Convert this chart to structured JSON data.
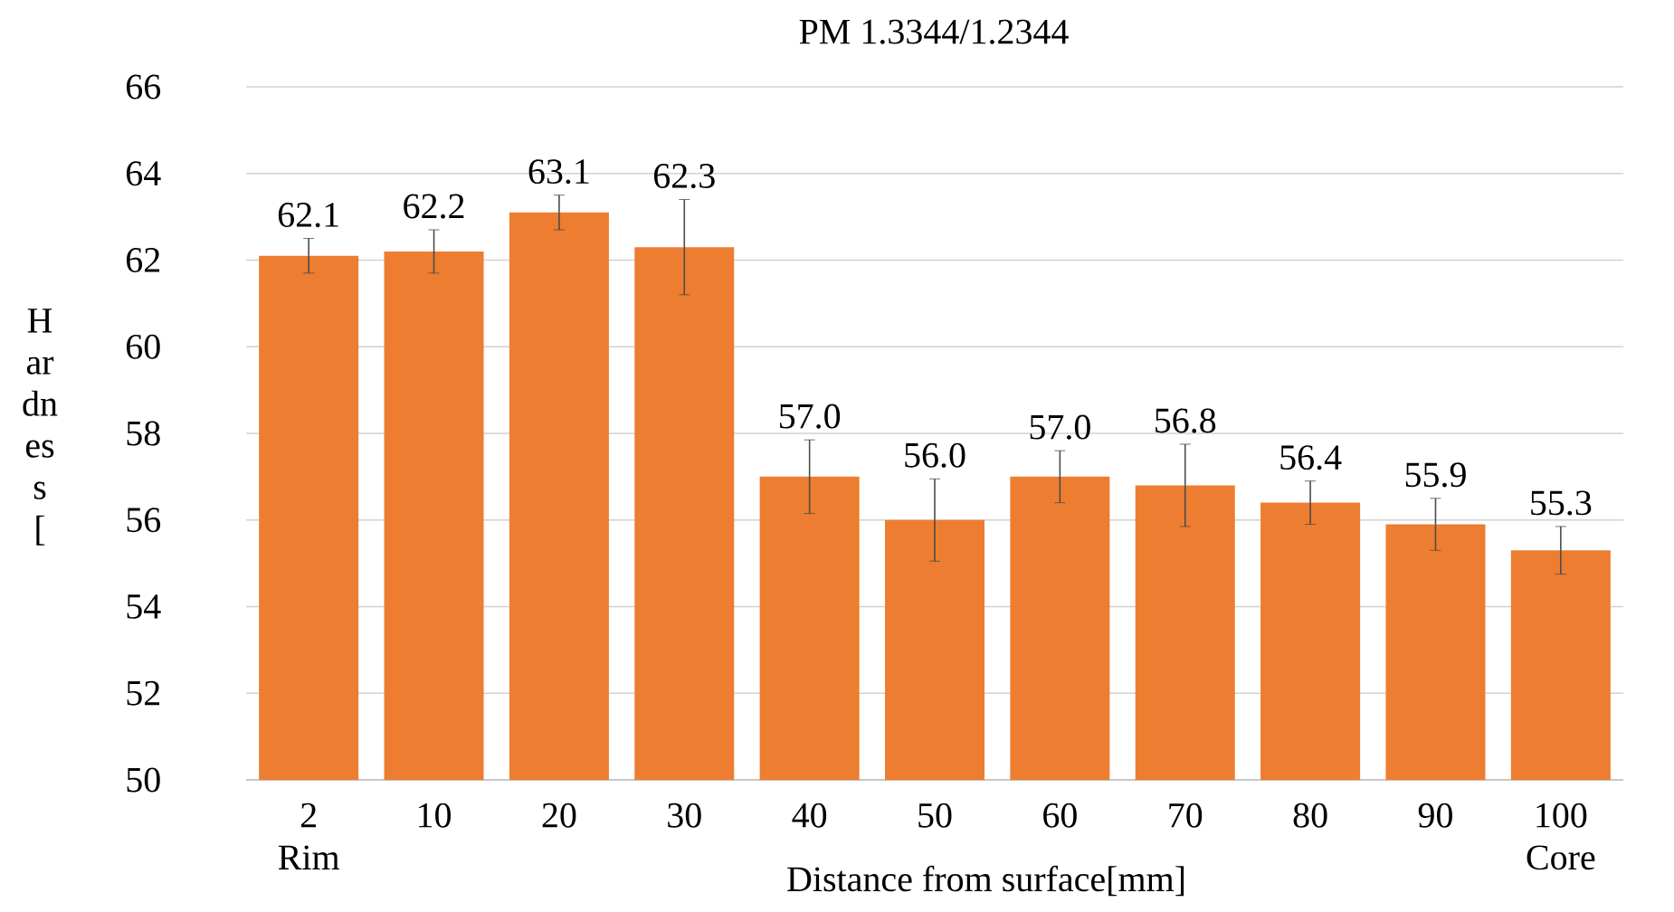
{
  "chart_data": {
    "type": "bar",
    "title": "PM 1.3344/1.2344",
    "xlabel": "Distance from surface[mm]",
    "ylabel": "H ar dn es s [",
    "categories": [
      "2",
      "10",
      "20",
      "30",
      "40",
      "50",
      "60",
      "70",
      "80",
      "90",
      "100"
    ],
    "values": [
      62.1,
      62.2,
      63.1,
      62.3,
      57.0,
      56.0,
      57.0,
      56.8,
      56.4,
      55.9,
      55.3
    ],
    "errors": [
      0.4,
      0.5,
      0.4,
      1.1,
      0.85,
      0.95,
      0.6,
      0.95,
      0.5,
      0.6,
      0.55
    ],
    "color": "#ed7d31",
    "ylim": [
      50,
      66
    ],
    "yticks": [
      50,
      52,
      54,
      56,
      58,
      60,
      62,
      64,
      66
    ],
    "grid": "y",
    "value_labels": [
      "62.1",
      "62.2",
      "63.1",
      "62.3",
      "57.0",
      "56.0",
      "57.0",
      "56.8",
      "56.4",
      "55.9",
      "55.3"
    ],
    "annotations": [
      "Rim",
      "Core"
    ]
  }
}
